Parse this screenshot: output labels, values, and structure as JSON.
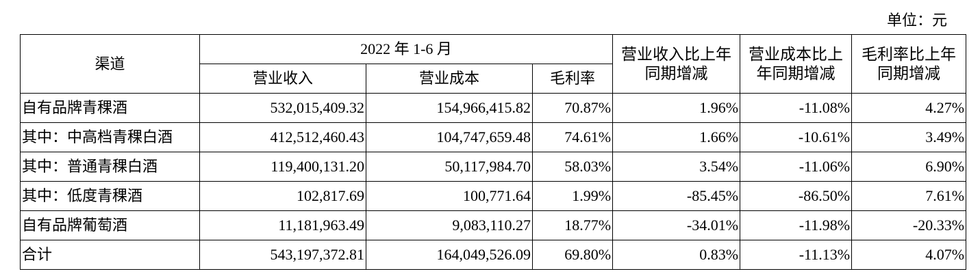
{
  "unit": "单位：元",
  "table": {
    "header": {
      "channel": "渠道",
      "period": "2022 年 1-6 月",
      "columns": [
        "营业收入",
        "营业成本",
        "毛利率"
      ],
      "changes": [
        "营业收入比上年同期增减",
        "营业成本比上年同期增减",
        "毛利率比上年同期增减"
      ]
    },
    "rows": [
      [
        "自有品牌青稞酒",
        "532,015,409.32",
        "154,966,415.82",
        "70.87%",
        "1.96%",
        "-11.08%",
        "4.27%"
      ],
      [
        "其中：中高档青稞白酒",
        "412,512,460.43",
        "104,747,659.48",
        "74.61%",
        "1.66%",
        "-10.61%",
        "3.49%"
      ],
      [
        "其中：普通青稞白酒",
        "119,400,131.20",
        "50,117,984.70",
        "58.03%",
        "3.54%",
        "-11.06%",
        "6.90%"
      ],
      [
        "其中：低度青稞酒",
        "102,817.69",
        "100,771.64",
        "1.99%",
        "-85.45%",
        "-86.50%",
        "7.61%"
      ],
      [
        "自有品牌葡萄酒",
        "11,181,963.49",
        "9,083,110.27",
        "18.77%",
        "-34.01%",
        "-11.98%",
        "-20.33%"
      ],
      [
        "合计",
        "543,197,372.81",
        "164,049,526.09",
        "69.80%",
        "0.83%",
        "-11.13%",
        "4.07%"
      ]
    ]
  }
}
